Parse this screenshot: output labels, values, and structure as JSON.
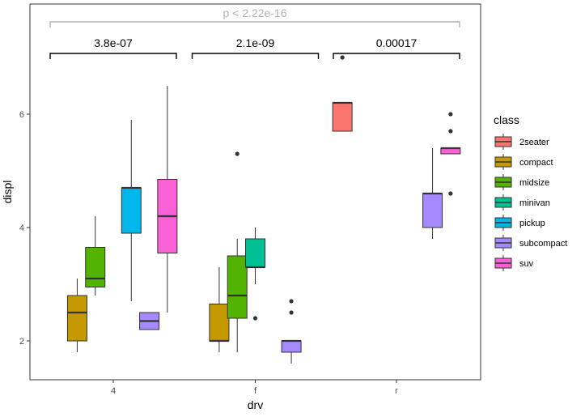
{
  "chart_data": {
    "type": "boxplot",
    "xlabel": "drv",
    "ylabel": "displ",
    "ylim": [
      1.3,
      7.9
    ],
    "yticks": [
      2,
      4,
      6
    ],
    "categories": [
      "4",
      "f",
      "r"
    ],
    "legend": {
      "title": "class",
      "placement": "right",
      "items": [
        {
          "name": "2seater",
          "color": "#F8766D"
        },
        {
          "name": "compact",
          "color": "#C49A00"
        },
        {
          "name": "midsize",
          "color": "#53B400"
        },
        {
          "name": "minivan",
          "color": "#00C094"
        },
        {
          "name": "pickup",
          "color": "#00B6EB"
        },
        {
          "name": "subcompact",
          "color": "#A58AFF"
        },
        {
          "name": "suv",
          "color": "#FB61D7"
        }
      ]
    },
    "groups": [
      {
        "drv": "4",
        "boxes": [
          {
            "class": "compact",
            "lower": 1.8,
            "q1": 2.0,
            "median": 2.5,
            "q3": 2.8,
            "upper": 3.1,
            "outliers": []
          },
          {
            "class": "midsize",
            "lower": 2.8,
            "q1": 2.95,
            "median": 3.1,
            "q3": 3.65,
            "upper": 4.2,
            "outliers": []
          },
          {
            "class": "pickup",
            "lower": 2.7,
            "q1": 3.9,
            "median": 4.7,
            "q3": 4.7,
            "upper": 5.9,
            "outliers": []
          },
          {
            "class": "subcompact",
            "lower": 2.2,
            "q1": 2.2,
            "median": 2.35,
            "q3": 2.5,
            "upper": 2.5,
            "outliers": []
          },
          {
            "class": "suv",
            "lower": 2.5,
            "q1": 3.55,
            "median": 4.2,
            "q3": 4.85,
            "upper": 6.5,
            "outliers": []
          }
        ]
      },
      {
        "drv": "f",
        "boxes": [
          {
            "class": "compact",
            "lower": 1.8,
            "q1": 2.0,
            "median": 2.0,
            "q3": 2.65,
            "upper": 3.3,
            "outliers": []
          },
          {
            "class": "midsize",
            "lower": 1.8,
            "q1": 2.4,
            "median": 2.8,
            "q3": 3.5,
            "upper": 3.8,
            "outliers": [
              5.3
            ]
          },
          {
            "class": "minivan",
            "lower": 3.0,
            "q1": 3.3,
            "median": 3.3,
            "q3": 3.8,
            "upper": 4.0,
            "outliers": [
              2.4
            ]
          },
          {
            "class": "subcompact",
            "lower": 1.6,
            "q1": 1.8,
            "median": 2.0,
            "q3": 2.0,
            "upper": 2.0,
            "outliers": [
              2.5,
              2.7
            ]
          }
        ]
      },
      {
        "drv": "r",
        "boxes": [
          {
            "class": "2seater",
            "lower": 5.7,
            "q1": 5.7,
            "median": 6.2,
            "q3": 6.2,
            "upper": 6.2,
            "outliers": [
              7.0
            ]
          },
          {
            "class": "subcompact",
            "lower": 3.8,
            "q1": 4.0,
            "median": 4.6,
            "q3": 4.6,
            "upper": 5.4,
            "outliers": []
          },
          {
            "class": "suv",
            "lower": 5.3,
            "q1": 5.3,
            "median": 5.4,
            "q3": 5.4,
            "upper": 5.4,
            "outliers": [
              4.6,
              5.7,
              6.0
            ]
          }
        ]
      }
    ],
    "annotations": {
      "global": {
        "label": "p < 2.22e-16",
        "color": "#b3b3b3"
      },
      "brackets": [
        {
          "group": "4",
          "label": "3.8e-07"
        },
        {
          "group": "f",
          "label": "2.1e-09"
        },
        {
          "group": "r",
          "label": "0.00017"
        }
      ]
    },
    "grid": false
  }
}
